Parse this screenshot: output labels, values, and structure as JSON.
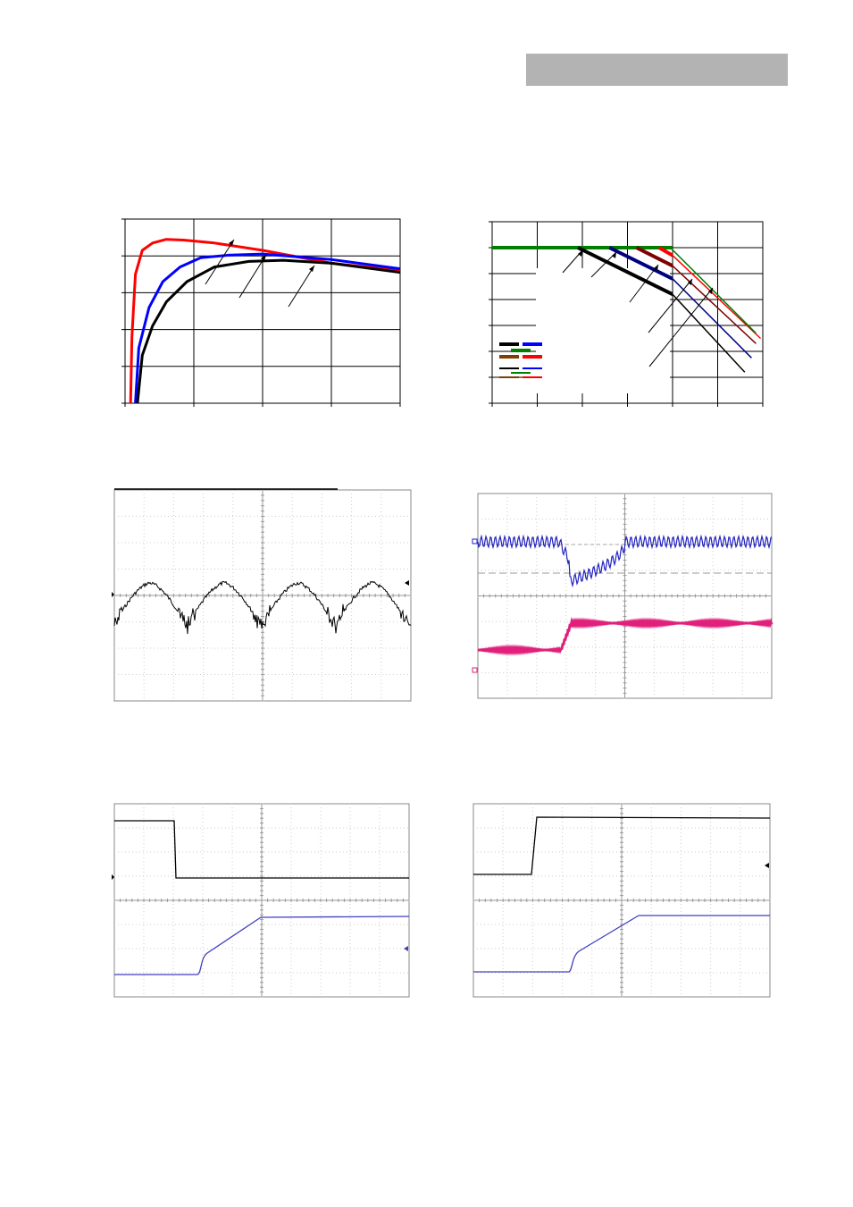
{
  "page": {
    "header_bar_color": "#b3b3b3"
  },
  "chart_data": [
    {
      "type": "line",
      "panel": "efficiency-curves",
      "xlim": [
        0,
        4
      ],
      "ylim": [
        0,
        5
      ],
      "grid": true,
      "series": [
        {
          "color": "#ff0000",
          "values": [
            [
              0.08,
              0
            ],
            [
              0.1,
              1.8
            ],
            [
              0.15,
              3.5
            ],
            [
              0.25,
              4.15
            ],
            [
              0.4,
              4.35
            ],
            [
              0.6,
              4.45
            ],
            [
              0.85,
              4.43
            ],
            [
              1.3,
              4.35
            ],
            [
              2.0,
              4.15
            ],
            [
              3.0,
              3.8
            ],
            [
              4.0,
              3.6
            ]
          ]
        },
        {
          "color": "#0000ff",
          "values": [
            [
              0.15,
              0
            ],
            [
              0.2,
              1.5
            ],
            [
              0.35,
              2.6
            ],
            [
              0.55,
              3.3
            ],
            [
              0.8,
              3.7
            ],
            [
              1.1,
              3.95
            ],
            [
              1.5,
              4.02
            ],
            [
              2.0,
              4.05
            ],
            [
              3.0,
              3.9
            ],
            [
              4.0,
              3.65
            ]
          ]
        },
        {
          "color": "#000000",
          "values": [
            [
              0.18,
              0
            ],
            [
              0.25,
              1.3
            ],
            [
              0.4,
              2.1
            ],
            [
              0.6,
              2.75
            ],
            [
              0.9,
              3.3
            ],
            [
              1.3,
              3.7
            ],
            [
              1.8,
              3.85
            ],
            [
              2.3,
              3.88
            ],
            [
              3.0,
              3.8
            ],
            [
              4.0,
              3.55
            ]
          ]
        }
      ],
      "annotations": [
        {
          "label": "",
          "color": "#000000"
        },
        {
          "label": "",
          "color": "#000000"
        },
        {
          "label": "",
          "color": "#000000"
        }
      ]
    },
    {
      "type": "line",
      "panel": "derating-curves",
      "xlim": [
        0,
        6
      ],
      "ylim": [
        0,
        7
      ],
      "grid": true,
      "series": [
        {
          "color": "#007f00",
          "width": 4,
          "values": [
            [
              0,
              6
            ],
            [
              4,
              6
            ]
          ]
        },
        {
          "color": "#000000",
          "width": 4,
          "values": [
            [
              1.9,
              6
            ],
            [
              4,
              4.2
            ]
          ]
        },
        {
          "color": "#00007f",
          "width": 4,
          "values": [
            [
              2.6,
              6
            ],
            [
              4,
              4.8
            ]
          ]
        },
        {
          "color": "#7f0000",
          "width": 4,
          "values": [
            [
              3.2,
              6
            ],
            [
              4,
              5.3
            ]
          ]
        },
        {
          "color": "#ff0000",
          "width": 4,
          "values": [
            [
              3.7,
              6
            ],
            [
              4,
              5.7
            ]
          ]
        },
        {
          "color": "#000000",
          "width": 1.5,
          "values": [
            [
              4,
              4.2
            ],
            [
              5.6,
              1.2
            ]
          ]
        },
        {
          "color": "#00007f",
          "width": 1.5,
          "values": [
            [
              4,
              4.8
            ],
            [
              5.75,
              1.75
            ]
          ]
        },
        {
          "color": "#7f0000",
          "width": 1.5,
          "values": [
            [
              4,
              5.3
            ],
            [
              5.85,
              2.3
            ]
          ]
        },
        {
          "color": "#ff0000",
          "width": 1.5,
          "values": [
            [
              4,
              5.7
            ],
            [
              5.95,
              2.5
            ]
          ]
        },
        {
          "color": "#007f00",
          "width": 1.5,
          "values": [
            [
              3.95,
              6
            ],
            [
              5.85,
              2.7
            ]
          ]
        }
      ],
      "legend": {
        "placement": "left",
        "swatches": [
          "#000000",
          "#0000ff",
          "#007f00",
          "#7f3f00",
          "#ff0000",
          "#000000",
          "#0000ff",
          "#007f00",
          "#7f3f00",
          "#ff0000"
        ]
      }
    },
    {
      "type": "line",
      "panel": "ripple-waveform",
      "grid": true,
      "divisions": [
        10,
        8
      ],
      "series": [
        {
          "color": "#000000",
          "shape": "rectified-ripple",
          "cycles": 4
        }
      ]
    },
    {
      "type": "line",
      "panel": "load-transient-waveform",
      "grid": true,
      "divisions": [
        10,
        8
      ],
      "series": [
        {
          "color": "#2020c0",
          "shape": "ripple-with-dip"
        },
        {
          "color": "#e0207a",
          "shape": "step-up"
        }
      ]
    },
    {
      "type": "line",
      "panel": "turn-off-waveform",
      "grid": true,
      "divisions": [
        10,
        8
      ],
      "series": [
        {
          "color": "#000000",
          "shape": "step-down"
        },
        {
          "color": "#4040c0",
          "shape": "ramp-up"
        }
      ]
    },
    {
      "type": "line",
      "panel": "turn-on-waveform",
      "grid": true,
      "divisions": [
        10,
        8
      ],
      "series": [
        {
          "color": "#000000",
          "shape": "step-up"
        },
        {
          "color": "#4040c0",
          "shape": "ramp-up"
        }
      ]
    }
  ]
}
